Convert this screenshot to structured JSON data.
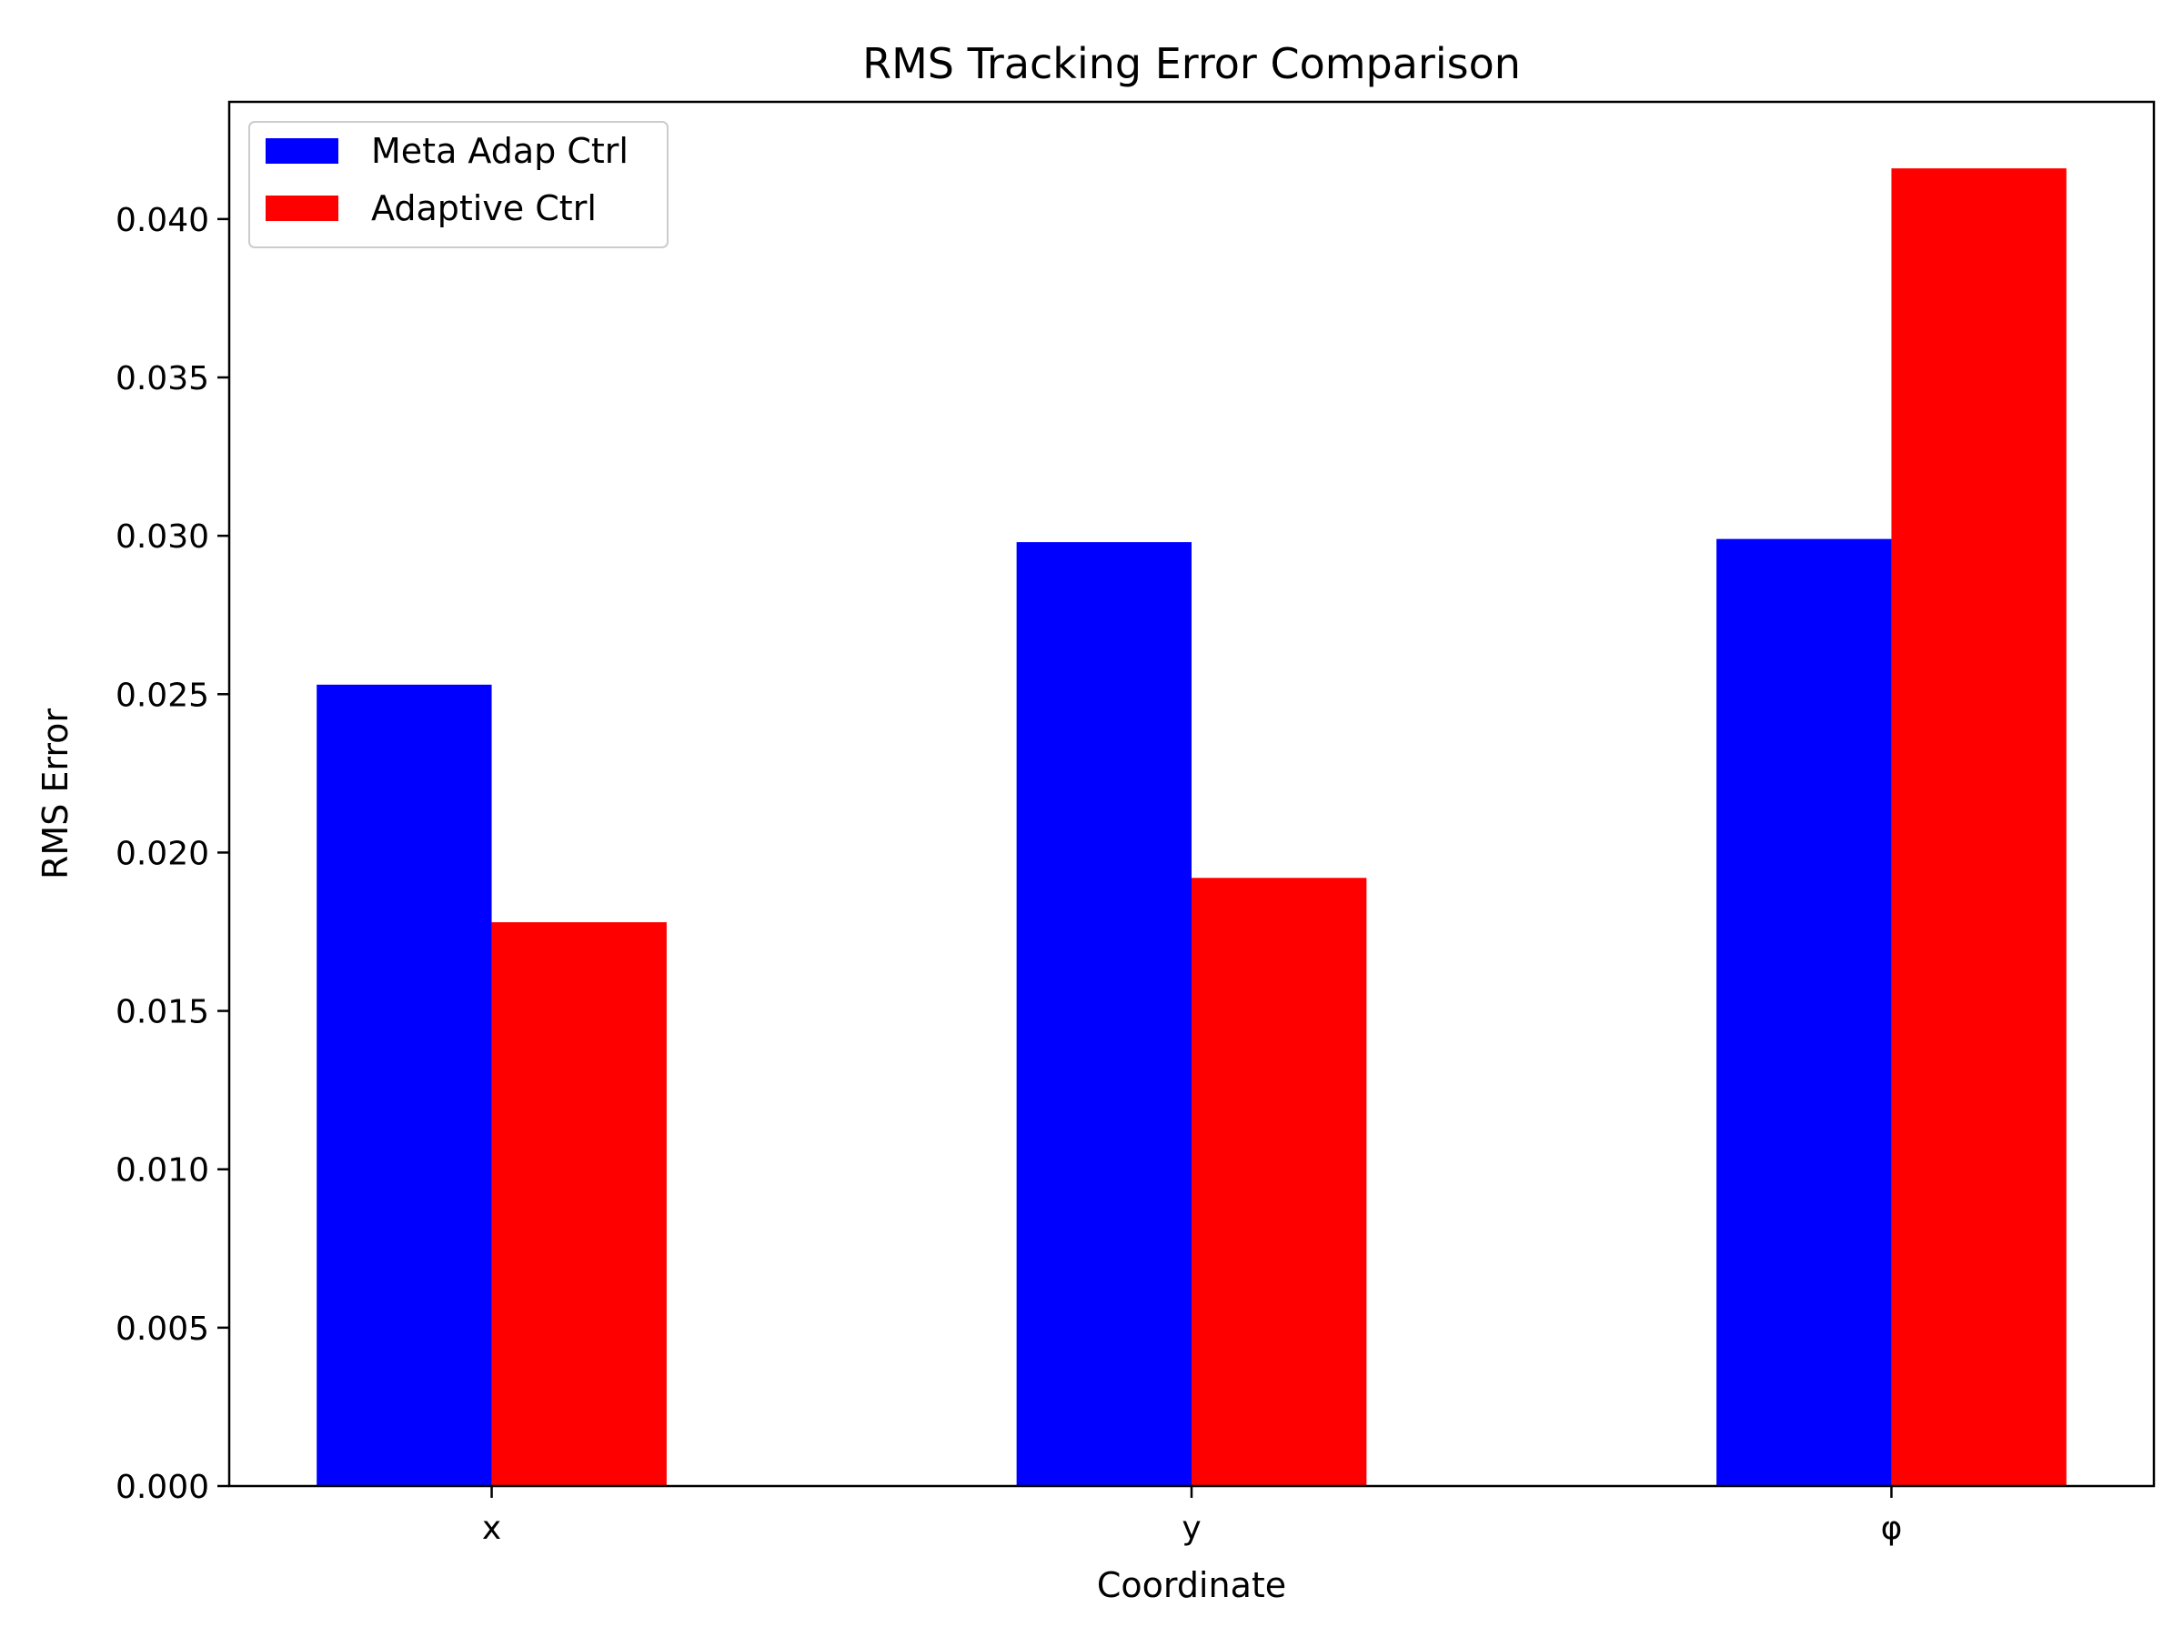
{
  "chart_data": {
    "type": "bar",
    "title": "RMS Tracking Error Comparison",
    "xlabel": "Coordinate",
    "ylabel": "RMS Error",
    "categories": [
      "x",
      "y",
      "φ"
    ],
    "series": [
      {
        "name": "Meta Adap Ctrl",
        "color": "#0000ff",
        "values": [
          0.0253,
          0.0298,
          0.0299
        ]
      },
      {
        "name": "Adaptive Ctrl",
        "color": "#ff0000",
        "values": [
          0.0178,
          0.0192,
          0.0416
        ]
      }
    ],
    "ylim": [
      0,
      0.0437
    ],
    "yticks": [
      "0.000",
      "0.005",
      "0.010",
      "0.015",
      "0.020",
      "0.025",
      "0.030",
      "0.035",
      "0.040"
    ],
    "grid": false,
    "legend_position": "top-left"
  }
}
